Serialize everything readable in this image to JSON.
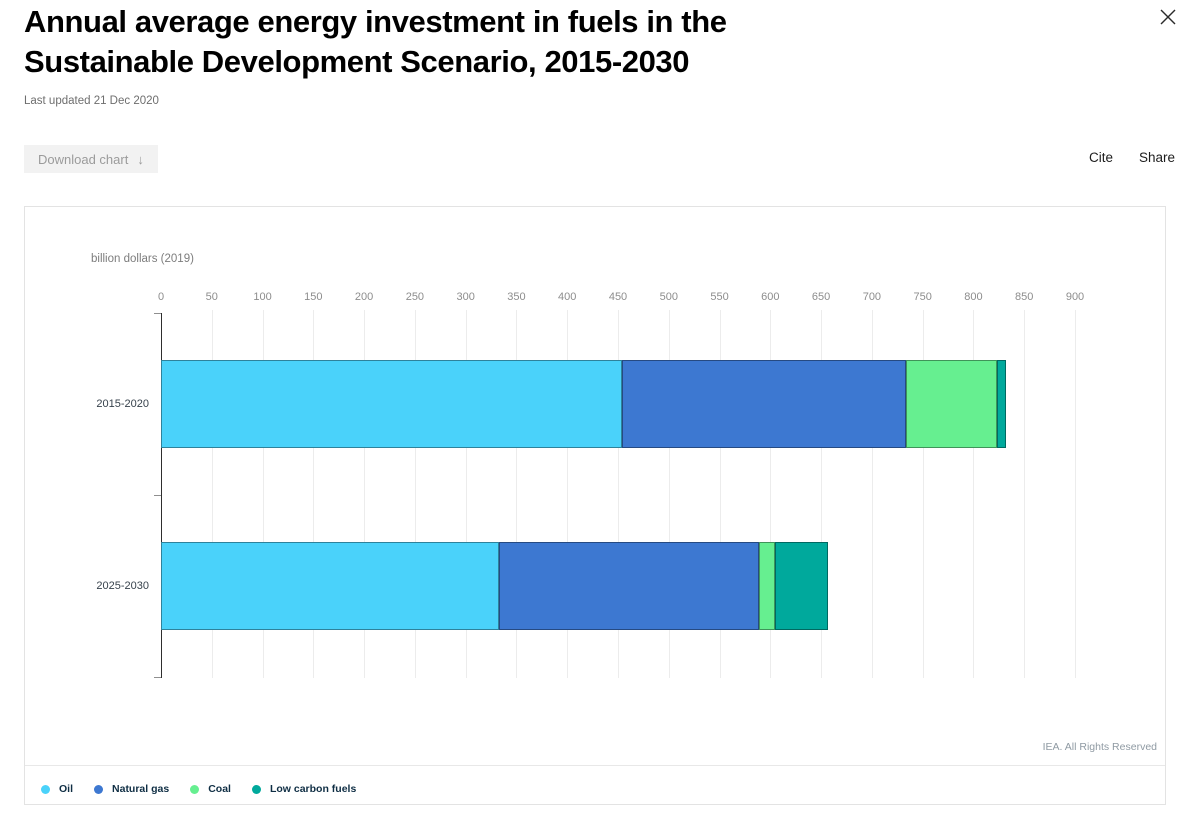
{
  "header": {
    "title_line1": "Annual average energy investment in fuels in the",
    "title_line2": "Sustainable Development Scenario, 2015-2030",
    "last_updated": "Last updated 21 Dec 2020",
    "download_label": "Download chart",
    "download_arrow": "↓",
    "cite_label": "Cite",
    "share_label": "Share"
  },
  "chart_data": {
    "type": "bar",
    "orientation": "horizontal",
    "stacked": true,
    "title": "Annual average energy investment in fuels in the Sustainable Development Scenario, 2015-2030",
    "unit_label": "billion dollars (2019)",
    "xlabel": "billion dollars (2019)",
    "ylabel": "",
    "categories": [
      "2015-2020",
      "2025-2030"
    ],
    "series": [
      {
        "name": "Oil",
        "color": "#4ad2fa",
        "values": [
          454,
          333
        ]
      },
      {
        "name": "Natural gas",
        "color": "#3d78d1",
        "values": [
          280,
          256
        ]
      },
      {
        "name": "Coal",
        "color": "#66ef90",
        "values": [
          89,
          16
        ]
      },
      {
        "name": "Low carbon fuels",
        "color": "#00a99c",
        "values": [
          9,
          52
        ]
      }
    ],
    "totals_estimated": [
      832,
      657
    ],
    "xlim": [
      0,
      900
    ],
    "xticks": [
      0,
      50,
      100,
      150,
      200,
      250,
      300,
      350,
      400,
      450,
      500,
      550,
      600,
      650,
      700,
      750,
      800,
      850,
      900
    ],
    "grid": true,
    "legend_position": "bottom",
    "attribution": "IEA. All Rights Reserved"
  }
}
